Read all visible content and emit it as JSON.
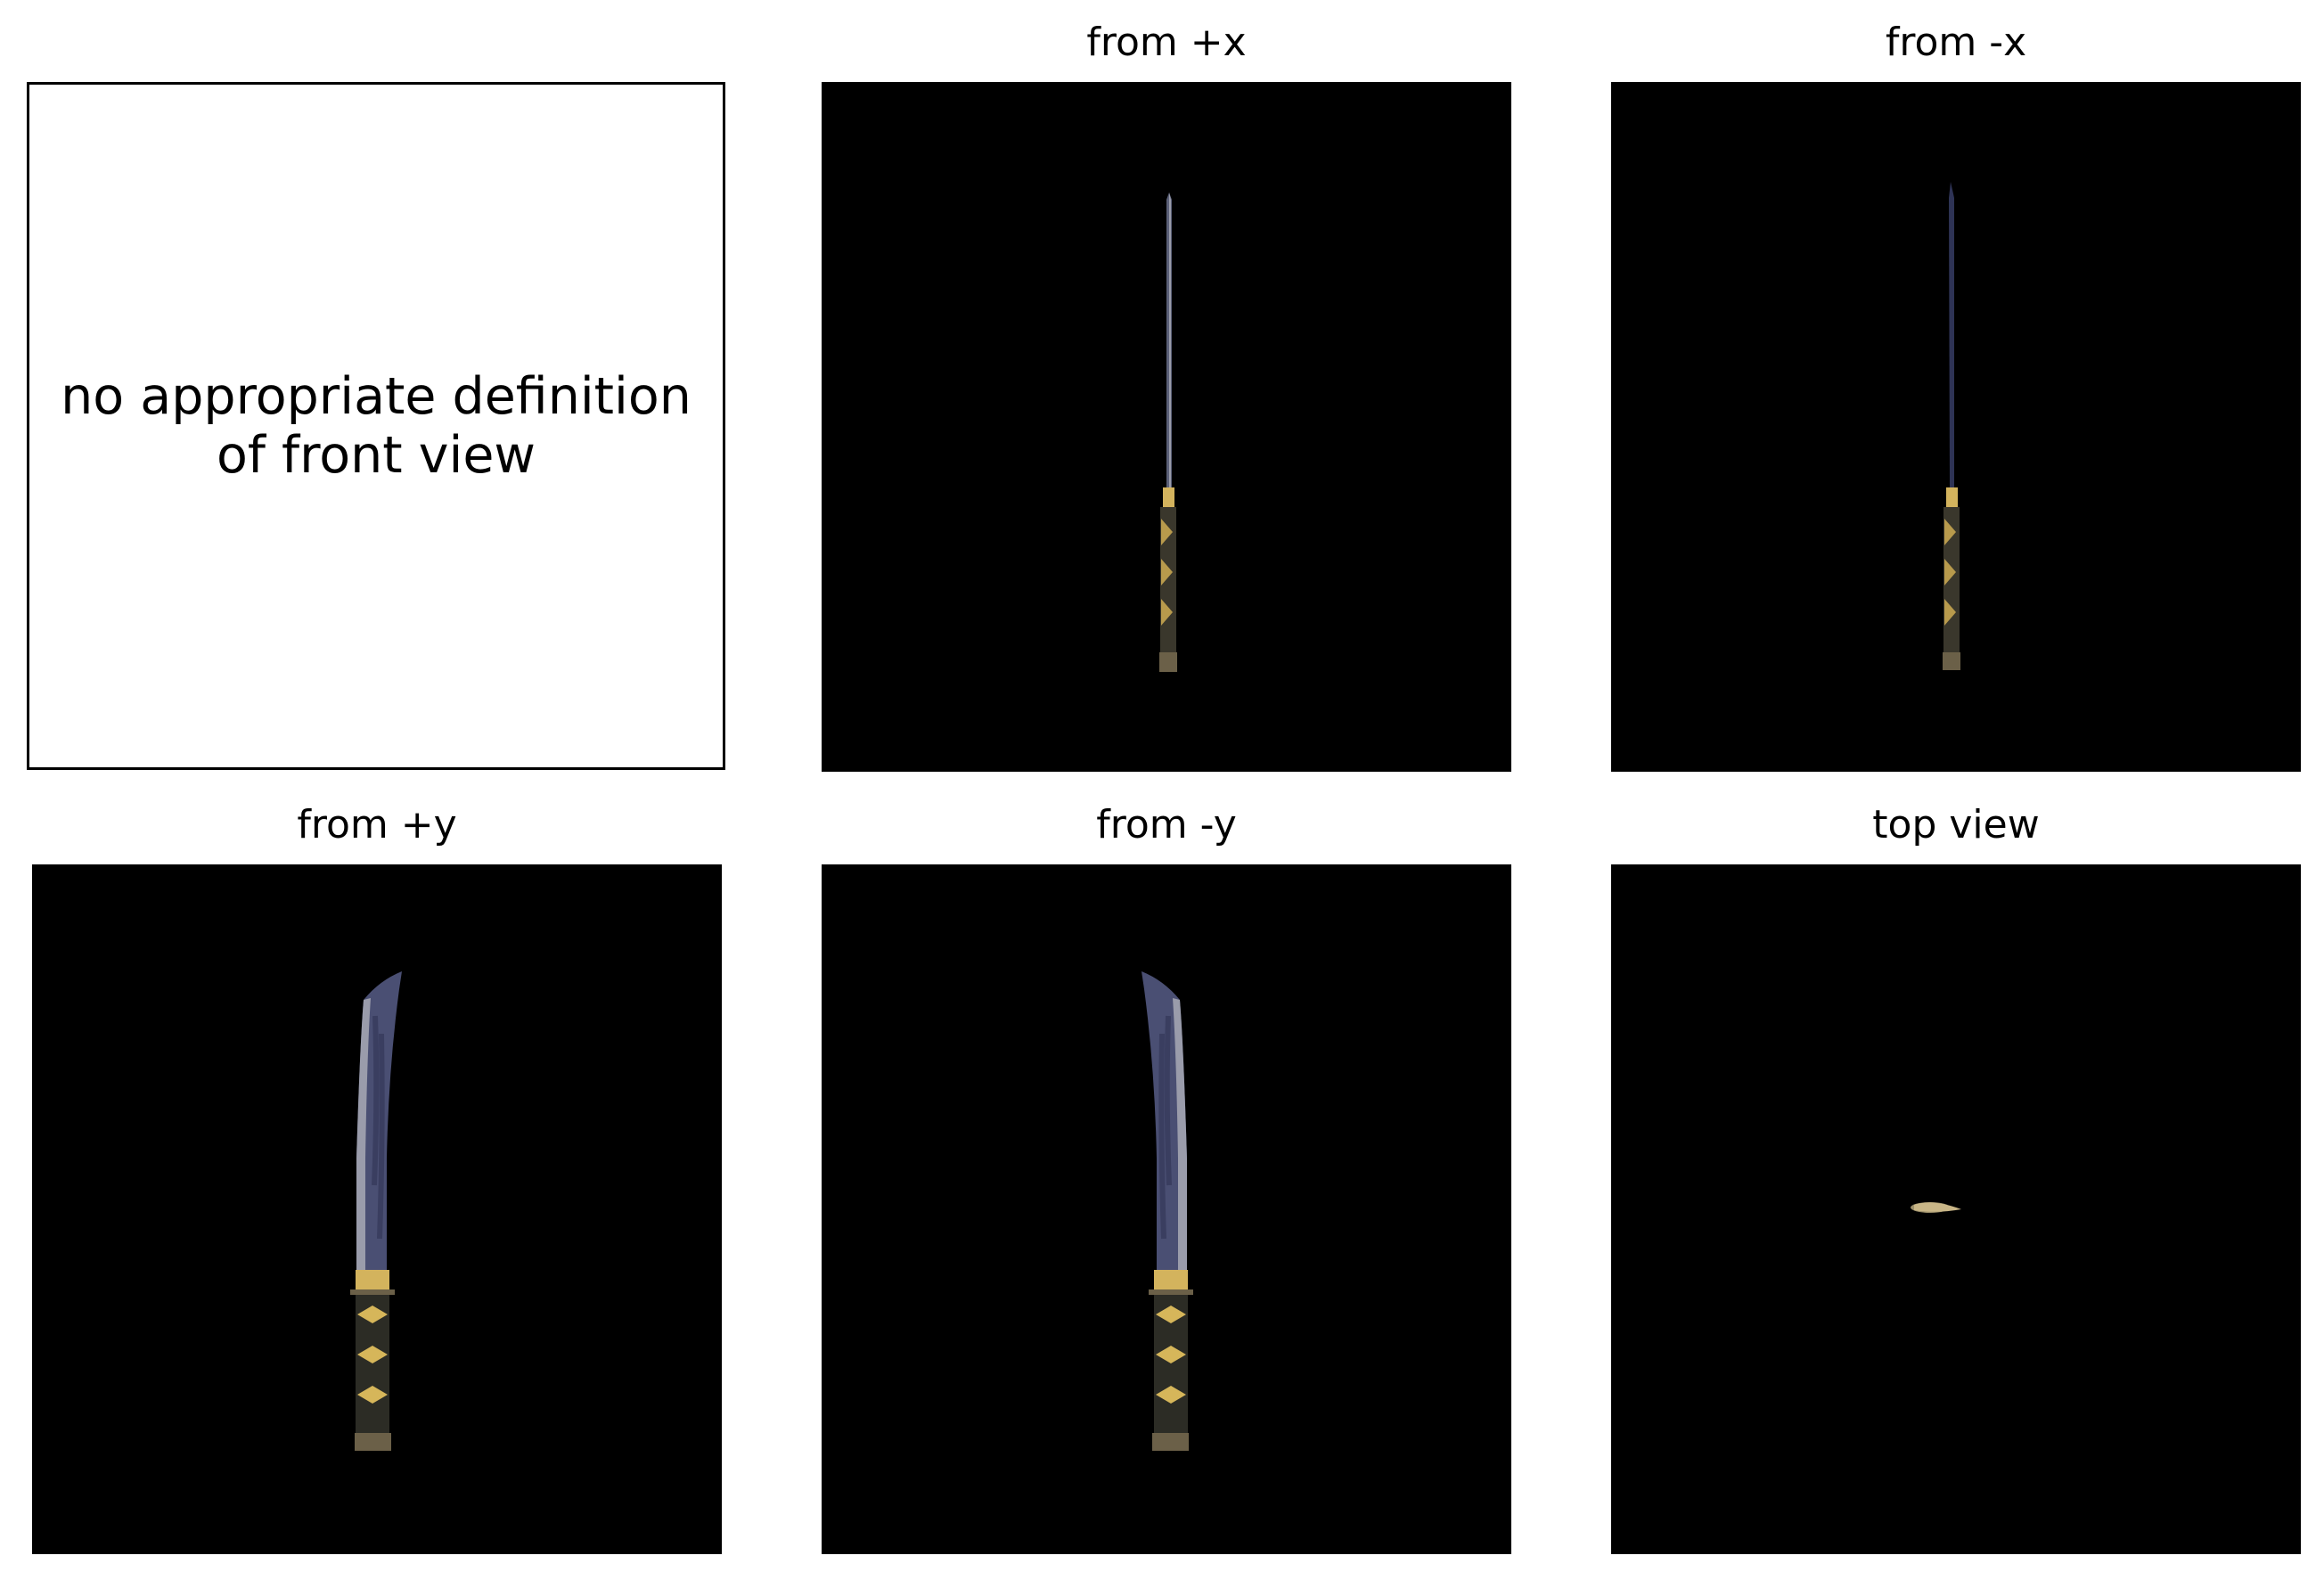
{
  "figure": {
    "front_view_message": {
      "line1": "no appropriate definition",
      "line2": "of front view"
    },
    "panels": [
      {
        "title": "from +x",
        "view": "edge-on view of sword from +x"
      },
      {
        "title": "from -x",
        "view": "edge-on view of sword from -x"
      },
      {
        "title": "from +y",
        "view": "side profile of curved sword from +y"
      },
      {
        "title": "from -y",
        "view": "side profile of curved sword from -y"
      },
      {
        "title": "top view",
        "view": "sword seen from above"
      }
    ]
  },
  "colors": {
    "background": "#000000",
    "blade": "#4a4f73",
    "blade_edge": "#9a9cab",
    "handle_wrap": "#2c2c25",
    "handle_diamond": "#d6b65a",
    "habaki": "#d3b35d",
    "pommel": "#6b6048"
  }
}
